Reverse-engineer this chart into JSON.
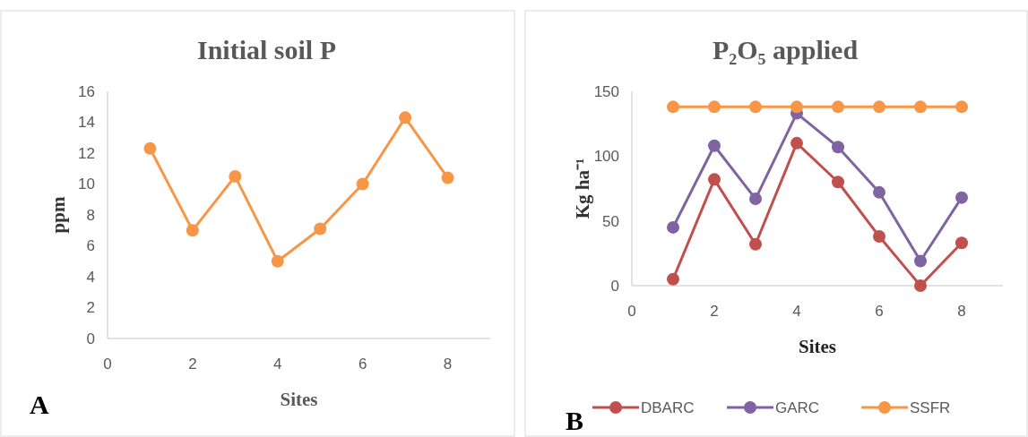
{
  "chart_data": [
    {
      "type": "line",
      "title": "Initial soil P",
      "xlabel": "Sites",
      "ylabel": "ppm",
      "x": [
        1,
        2,
        3,
        4,
        5,
        6,
        7,
        8
      ],
      "series": [
        {
          "color": "#f79646",
          "values": [
            12.3,
            7.0,
            10.5,
            5.0,
            7.1,
            10.0,
            14.3,
            10.4
          ]
        }
      ],
      "xlim": [
        0,
        9
      ],
      "xticks": [
        0,
        2,
        4,
        6,
        8
      ],
      "ylim": [
        0,
        16
      ],
      "yticks": [
        0,
        2,
        4,
        6,
        8,
        10,
        12,
        14,
        16
      ],
      "grid": false,
      "marker": "circle",
      "legend": false,
      "annotations": [
        "A"
      ]
    },
    {
      "type": "line",
      "title": "P₂O₅ applied",
      "xlabel": "Sites",
      "ylabel": "Kg ha⁻¹",
      "x": [
        1,
        2,
        3,
        4,
        5,
        6,
        7,
        8
      ],
      "series": [
        {
          "name": "DBARC",
          "color": "#c0504d",
          "values": [
            5,
            82,
            32,
            110,
            80,
            38,
            0,
            33
          ]
        },
        {
          "name": "GARC",
          "color": "#8064a2",
          "values": [
            45,
            108,
            67,
            133,
            107,
            72,
            19,
            68
          ]
        },
        {
          "name": "SSFR",
          "color": "#f79646",
          "values": [
            138,
            138,
            138,
            138,
            138,
            138,
            138,
            138
          ]
        }
      ],
      "xlim": [
        0,
        9
      ],
      "xticks": [
        0,
        2,
        4,
        6,
        8
      ],
      "ylim": [
        0,
        150
      ],
      "yticks": [
        0,
        50,
        100,
        150
      ],
      "grid": false,
      "marker": "circle",
      "legend": "bottom",
      "annotations": [
        "B"
      ]
    }
  ]
}
